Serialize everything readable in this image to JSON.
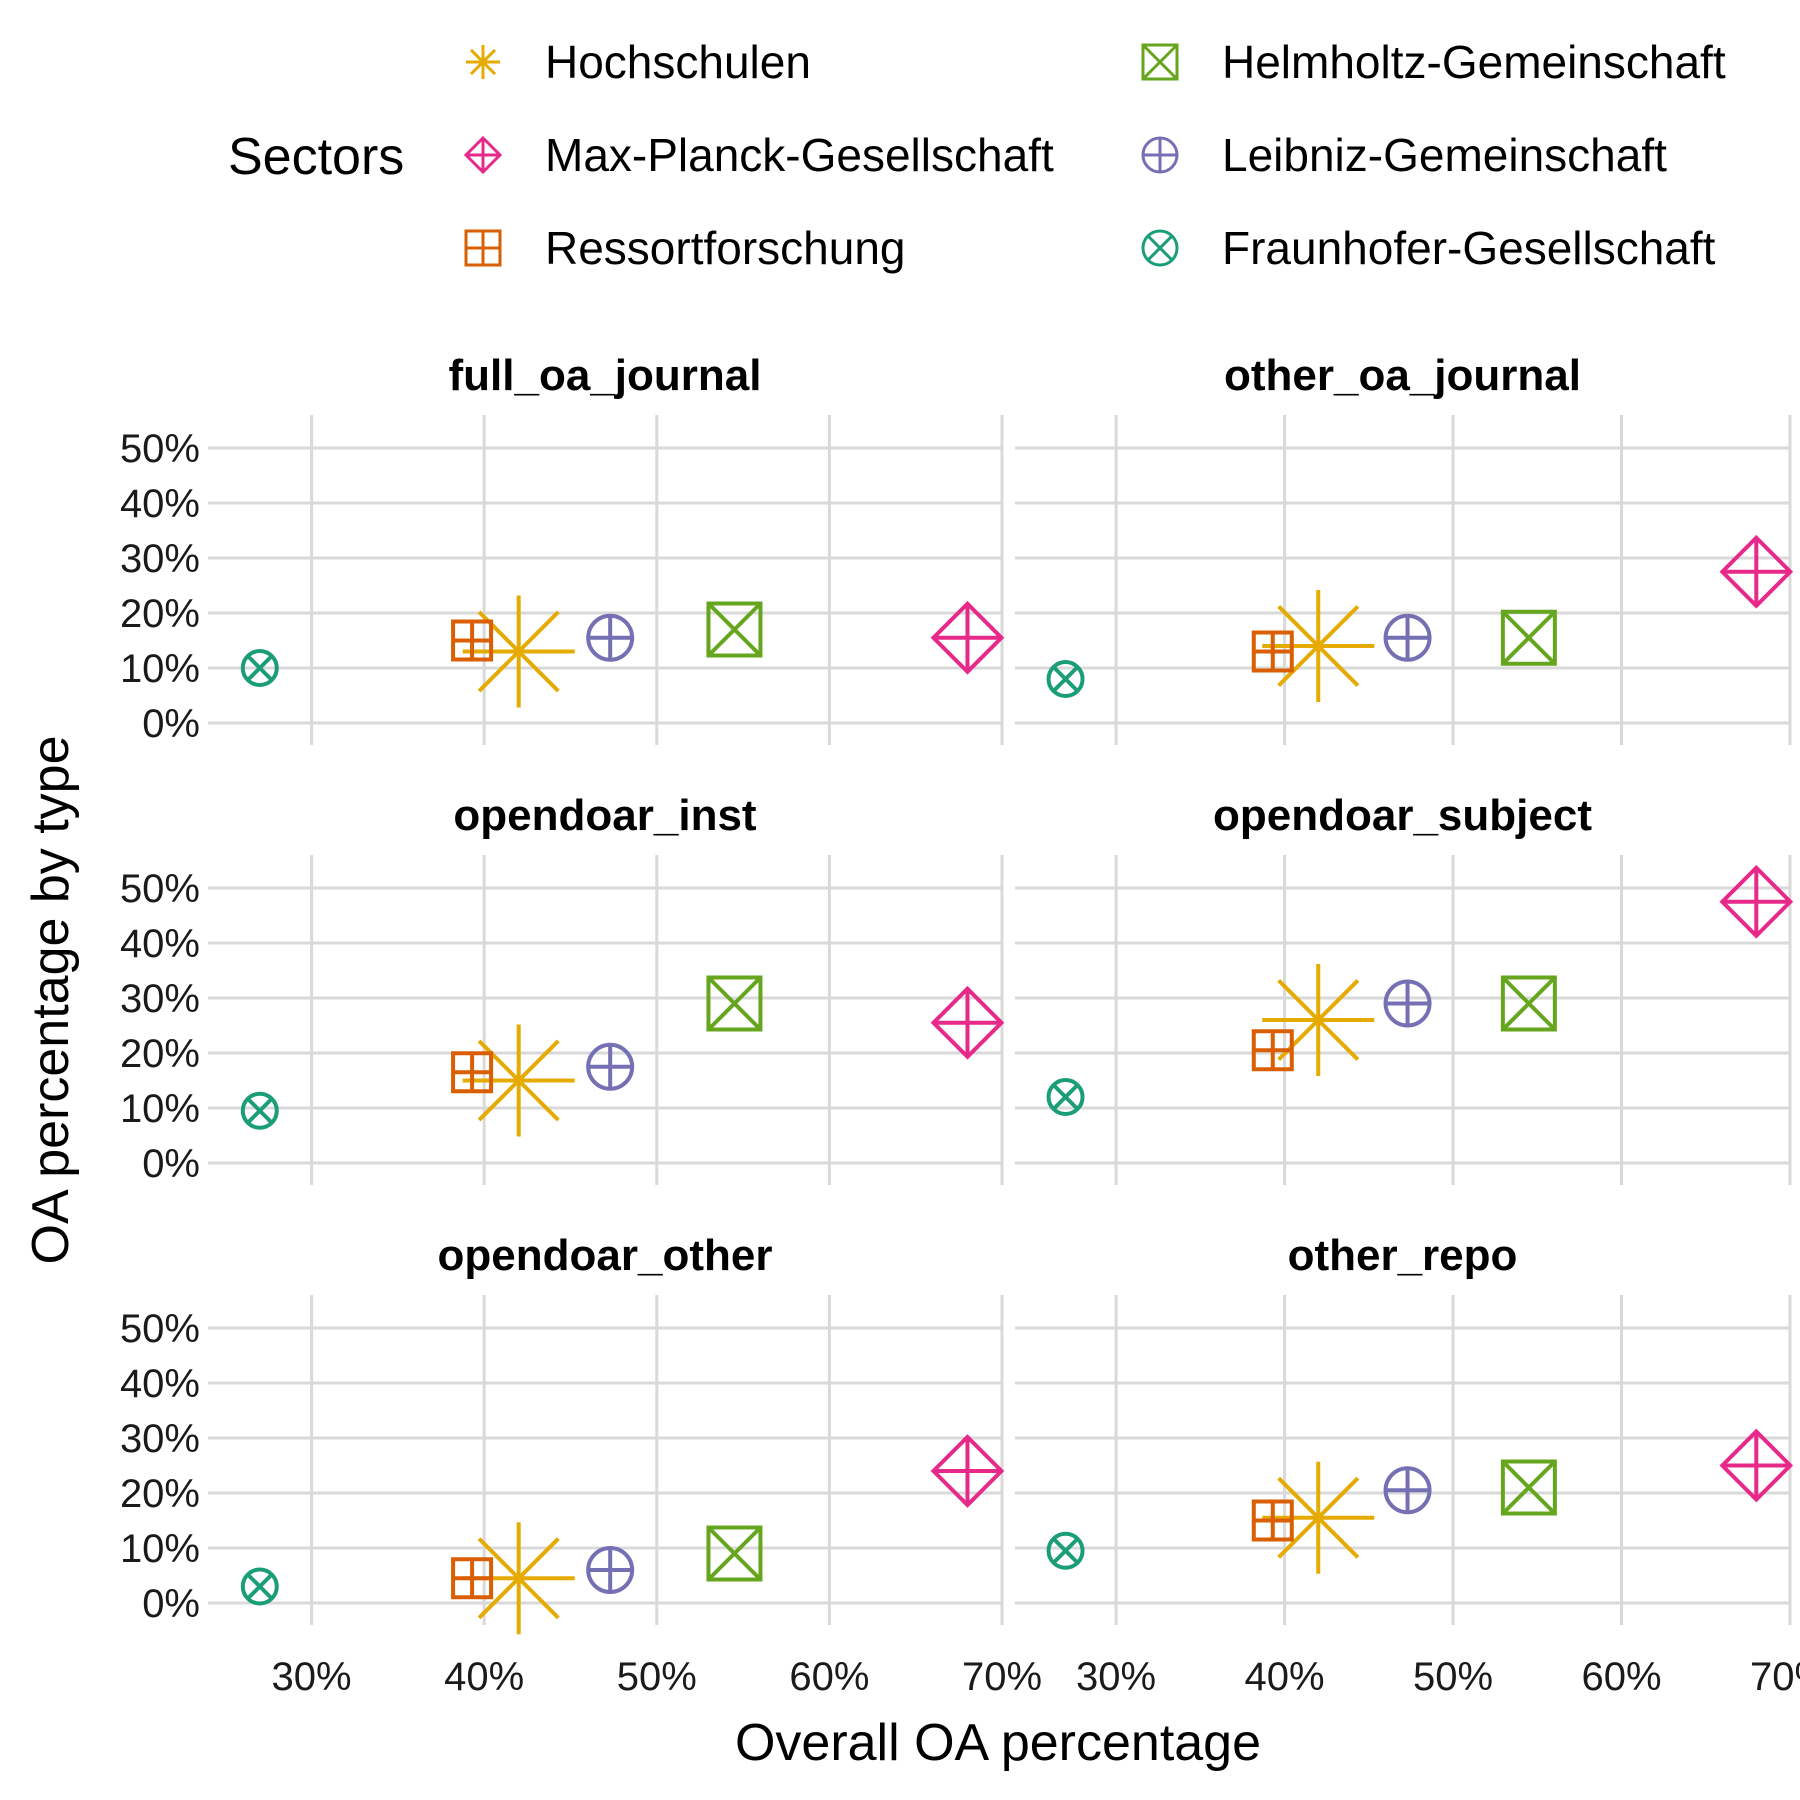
{
  "chart_data": {
    "type": "scatter",
    "facet_layout": "3 rows x 2 columns",
    "xlabel": "Overall OA percentage",
    "ylabel": "OA percentage by type",
    "xlim": [
      24,
      70
    ],
    "ylim": [
      -4,
      56
    ],
    "x_ticks": [
      30,
      40,
      50,
      60,
      70
    ],
    "x_tick_labels": [
      "30%",
      "40%",
      "50%",
      "60%",
      "70%"
    ],
    "y_ticks": [
      0,
      10,
      20,
      30,
      40,
      50
    ],
    "y_tick_labels": [
      "0%",
      "10%",
      "20%",
      "30%",
      "40%",
      "50%"
    ],
    "grid": true,
    "legend": {
      "title": "Sectors",
      "placement": "top",
      "items": [
        {
          "name": "Hochschulen",
          "shape": "asterisk",
          "color": "#E6AB02"
        },
        {
          "name": "Max-Planck-Gesellschaft",
          "shape": "diamond-plus",
          "color": "#E7298A"
        },
        {
          "name": "Ressortforschung",
          "shape": "square-plus",
          "color": "#D95F02"
        },
        {
          "name": "Helmholtz-Gemeinschaft",
          "shape": "square-x",
          "color": "#66A61E"
        },
        {
          "name": "Leibniz-Gemeinschaft",
          "shape": "circle-plus",
          "color": "#7570B3"
        },
        {
          "name": "Fraunhofer-Gesellschaft",
          "shape": "circle-x",
          "color": "#1B9E77"
        }
      ]
    },
    "overall_oa": {
      "Hochschulen": 42,
      "Max-Planck-Gesellschaft": 68,
      "Ressortforschung": 39.3,
      "Helmholtz-Gemeinschaft": 54.5,
      "Leibniz-Gemeinschaft": 47.3,
      "Fraunhofer-Gesellschaft": 27
    },
    "facets": [
      {
        "title": "full_oa_journal",
        "values": {
          "Hochschulen": 13,
          "Max-Planck-Gesellschaft": 15.5,
          "Ressortforschung": 15,
          "Helmholtz-Gemeinschaft": 17,
          "Leibniz-Gemeinschaft": 15.5,
          "Fraunhofer-Gesellschaft": 10
        }
      },
      {
        "title": "other_oa_journal",
        "values": {
          "Hochschulen": 14,
          "Max-Planck-Gesellschaft": 27.5,
          "Ressortforschung": 13,
          "Helmholtz-Gemeinschaft": 15.5,
          "Leibniz-Gemeinschaft": 15.5,
          "Fraunhofer-Gesellschaft": 8
        }
      },
      {
        "title": "opendoar_inst",
        "values": {
          "Hochschulen": 15,
          "Max-Planck-Gesellschaft": 25.5,
          "Ressortforschung": 16.5,
          "Helmholtz-Gemeinschaft": 29,
          "Leibniz-Gemeinschaft": 17.5,
          "Fraunhofer-Gesellschaft": 9.5
        }
      },
      {
        "title": "opendoar_subject",
        "values": {
          "Hochschulen": 26,
          "Max-Planck-Gesellschaft": 47.5,
          "Ressortforschung": 20.5,
          "Helmholtz-Gemeinschaft": 29,
          "Leibniz-Gemeinschaft": 29,
          "Fraunhofer-Gesellschaft": 12
        }
      },
      {
        "title": "opendoar_other",
        "values": {
          "Hochschulen": 4.5,
          "Max-Planck-Gesellschaft": 24,
          "Ressortforschung": 4.5,
          "Helmholtz-Gemeinschaft": 9,
          "Leibniz-Gemeinschaft": 6,
          "Fraunhofer-Gesellschaft": 3
        }
      },
      {
        "title": "other_repo",
        "values": {
          "Hochschulen": 15.5,
          "Max-Planck-Gesellschaft": 25,
          "Ressortforschung": 15,
          "Helmholtz-Gemeinschaft": 21,
          "Leibniz-Gemeinschaft": 20.5,
          "Fraunhofer-Gesellschaft": 9.5
        }
      }
    ]
  }
}
